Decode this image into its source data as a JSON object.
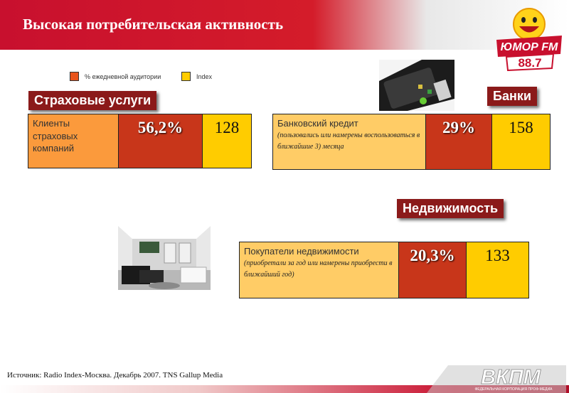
{
  "header": {
    "title": "Высокая потребительская активность"
  },
  "logo": {
    "brand": "Юмор FM",
    "frequency": "88.7"
  },
  "legend": [
    {
      "label": "% ежедневной аудитории",
      "color": "#e8541c"
    },
    {
      "label": "Index",
      "color": "#ffcc00"
    }
  ],
  "sections": {
    "insurance": {
      "label": "Страховые услуги",
      "description": "Клиенты страховых компаний",
      "note": "",
      "percent": "56,2%",
      "index": "128"
    },
    "banks": {
      "label": "Банки",
      "description": "Банковский кредит",
      "note": "(пользовались или намерены воспользоваться в ближайшие 3) месяца",
      "percent": "29%",
      "index": "158"
    },
    "realty": {
      "label": "Недвижимость",
      "description": "Покупатели недвижимости",
      "note": "(приобретали за год или намерены приобрести в ближайший год)",
      "percent": "20,3%",
      "index": "133"
    }
  },
  "footer": {
    "source": "Источник: Radio Index-Москва. Декабрь 2007. TNS Gallup Media",
    "corp_logo": "ВКПМ",
    "corp_subtitle": "ФЕДЕРАЛЬНАЯ КОРПОРАЦИЯ ПРОФ-МЕДИА"
  }
}
